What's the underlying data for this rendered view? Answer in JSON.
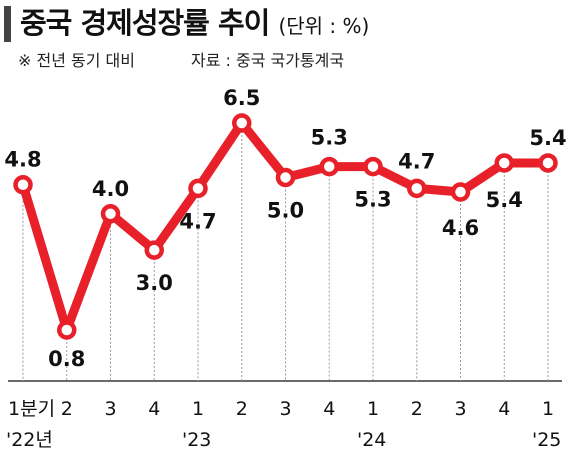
{
  "header": {
    "title": "중국 경제성장률 추이",
    "unit": "(단위 : %)",
    "note": "※ 전년 동기 대비",
    "source": "자료 : 중국 국가통계국"
  },
  "colors": {
    "line": "#e8202a",
    "accent_bar": "#444444",
    "marker_fill": "#ffffff",
    "guide": "#999999"
  },
  "chart_data": {
    "type": "line",
    "title": "중국 경제성장률 추이",
    "unit": "(단위 : %)",
    "categories": [
      "1분기",
      "2",
      "3",
      "4",
      "1",
      "2",
      "3",
      "4",
      "1",
      "2",
      "3",
      "4",
      "1"
    ],
    "year_labels": [
      "'22년",
      "",
      "",
      "",
      "'23",
      "",
      "",
      "",
      "'24",
      "",
      "",
      "",
      "'25"
    ],
    "values": [
      4.8,
      0.8,
      4.0,
      3.0,
      4.7,
      6.5,
      5.0,
      5.3,
      5.3,
      4.7,
      4.6,
      5.4,
      5.4
    ],
    "value_labels": [
      "4.8",
      "0.8",
      "4.0",
      "3.0",
      "4.7",
      "6.5",
      "5.0",
      "5.3",
      "5.3",
      "4.7",
      "4.6",
      "5.4",
      "5.4"
    ],
    "ylim": [
      0.8,
      6.5
    ],
    "grid": false,
    "legend": "none"
  }
}
